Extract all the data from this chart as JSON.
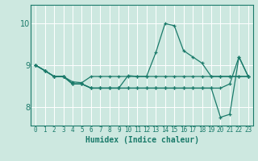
{
  "xlabel": "Humidex (Indice chaleur)",
  "xlim": [
    -0.5,
    23.5
  ],
  "ylim": [
    7.55,
    10.45
  ],
  "yticks": [
    8,
    9,
    10
  ],
  "xticks": [
    0,
    1,
    2,
    3,
    4,
    5,
    6,
    7,
    8,
    9,
    10,
    11,
    12,
    13,
    14,
    15,
    16,
    17,
    18,
    19,
    20,
    21,
    22,
    23
  ],
  "bg_color": "#cde8e0",
  "grid_color": "#ffffff",
  "line_color": "#1a7a6a",
  "lines": [
    [
      9.0,
      8.87,
      8.73,
      8.73,
      8.6,
      8.58,
      8.73,
      8.73,
      8.73,
      8.73,
      8.73,
      8.73,
      8.73,
      8.73,
      8.73,
      8.73,
      8.73,
      8.73,
      8.73,
      8.73,
      8.73,
      8.73,
      8.73,
      8.73
    ],
    [
      9.0,
      8.87,
      8.73,
      8.73,
      8.55,
      8.55,
      8.45,
      8.45,
      8.45,
      8.45,
      8.75,
      8.73,
      8.73,
      9.3,
      10.0,
      9.95,
      9.35,
      9.2,
      9.05,
      8.73,
      8.73,
      8.73,
      8.73,
      8.73
    ],
    [
      9.0,
      8.87,
      8.73,
      8.73,
      8.55,
      8.55,
      8.45,
      8.45,
      8.45,
      8.45,
      8.45,
      8.45,
      8.45,
      8.45,
      8.45,
      8.45,
      8.45,
      8.45,
      8.45,
      8.45,
      8.45,
      8.55,
      9.2,
      8.73
    ],
    [
      9.0,
      8.87,
      8.73,
      8.73,
      8.55,
      8.55,
      8.45,
      8.45,
      8.45,
      8.45,
      8.45,
      8.45,
      8.45,
      8.45,
      8.45,
      8.45,
      8.45,
      8.45,
      8.45,
      8.45,
      7.75,
      7.82,
      9.2,
      8.73
    ]
  ]
}
